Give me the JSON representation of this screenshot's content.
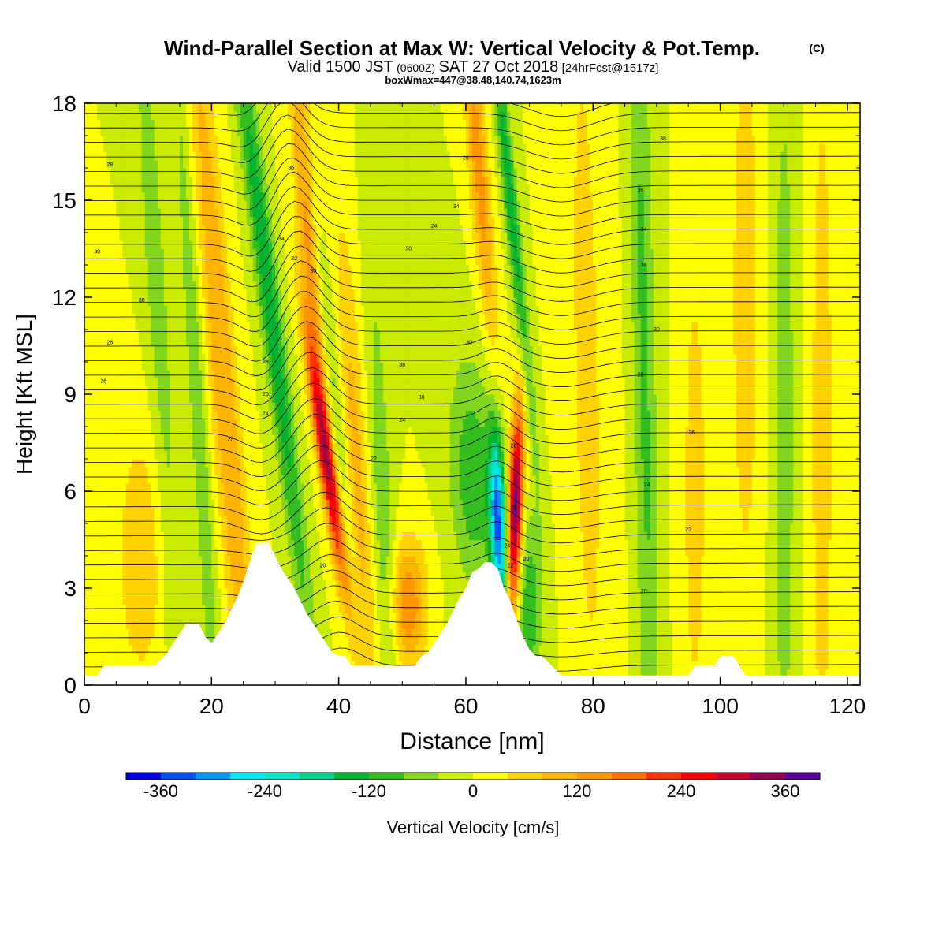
{
  "title": {
    "main": "Wind-Parallel Section at Max W: Vertical Velocity & Pot.Temp.",
    "copyright": "(C)",
    "valid_prefix": "Valid 1500 JST",
    "valid_utc": "(0600Z)",
    "valid_date": "SAT 27 Oct 2018",
    "forecast": "[24hrFcst@1517z]",
    "boxinfo": "boxWmax=447@38.48,140.74,1623m"
  },
  "chart_data": {
    "type": "heatmap",
    "xlabel": "Distance [nm]",
    "ylabel": "Height [Kft MSL]",
    "xlim": [
      0,
      122
    ],
    "ylim": [
      0,
      18
    ],
    "xticks": [
      "0",
      "20",
      "40",
      "60",
      "80",
      "100",
      "120"
    ],
    "yticks": [
      "0",
      "3",
      "6",
      "9",
      "12",
      "15",
      "18"
    ],
    "colorbar": {
      "label": "Vertical Velocity [cm/s]",
      "tick_labels": [
        "-360",
        "-240",
        "-120",
        "0",
        "120",
        "240",
        "360"
      ],
      "tick_values": [
        -360,
        -240,
        -120,
        0,
        120,
        240,
        360
      ],
      "range": [
        -400,
        400
      ],
      "interval": 40,
      "colors": [
        "#0000e6",
        "#0050f0",
        "#0096f5",
        "#00e6f5",
        "#00e6c8",
        "#00d28c",
        "#00b432",
        "#32be1e",
        "#82d61e",
        "#c8eb00",
        "#ffff00",
        "#ffd200",
        "#ffb400",
        "#ff9600",
        "#ff6e00",
        "#ff3200",
        "#ff0000",
        "#c80032",
        "#960050",
        "#5a0096"
      ]
    },
    "terrain": [
      [
        0,
        0.3
      ],
      [
        2,
        0.3
      ],
      [
        3,
        0.6
      ],
      [
        11,
        0.6
      ],
      [
        12,
        0.8
      ],
      [
        13,
        1.0
      ],
      [
        14,
        1.3
      ],
      [
        15,
        1.6
      ],
      [
        16,
        1.9
      ],
      [
        18,
        1.9
      ],
      [
        19,
        1.5
      ],
      [
        20,
        1.3
      ],
      [
        21,
        1.6
      ],
      [
        22,
        1.9
      ],
      [
        23,
        2.3
      ],
      [
        24,
        2.7
      ],
      [
        25,
        3.2
      ],
      [
        26,
        3.8
      ],
      [
        27,
        4.4
      ],
      [
        29,
        4.4
      ],
      [
        30,
        4.0
      ],
      [
        31,
        3.6
      ],
      [
        32,
        3.3
      ],
      [
        33,
        3.0
      ],
      [
        34,
        2.6
      ],
      [
        35,
        2.2
      ],
      [
        36,
        1.9
      ],
      [
        37,
        1.6
      ],
      [
        38,
        1.3
      ],
      [
        39,
        1.0
      ],
      [
        40,
        0.9
      ],
      [
        41,
        0.9
      ],
      [
        42,
        0.6
      ],
      [
        48,
        0.6
      ],
      [
        50,
        0.6
      ],
      [
        52,
        0.6
      ],
      [
        53,
        0.9
      ],
      [
        54,
        1.0
      ],
      [
        55,
        1.3
      ],
      [
        56,
        1.6
      ],
      [
        57,
        1.9
      ],
      [
        58,
        2.3
      ],
      [
        59,
        2.7
      ],
      [
        60,
        3.0
      ],
      [
        61,
        3.5
      ],
      [
        62,
        3.6
      ],
      [
        63,
        3.8
      ],
      [
        64,
        3.8
      ],
      [
        65,
        3.6
      ],
      [
        66,
        3.0
      ],
      [
        67,
        2.6
      ],
      [
        68,
        2.0
      ],
      [
        69,
        1.5
      ],
      [
        70,
        1.1
      ],
      [
        71,
        0.9
      ],
      [
        72,
        0.9
      ],
      [
        73,
        0.7
      ],
      [
        74,
        0.5
      ],
      [
        75,
        0.3
      ],
      [
        95,
        0.3
      ],
      [
        96,
        0.6
      ],
      [
        99,
        0.6
      ],
      [
        100,
        0.9
      ],
      [
        102,
        0.9
      ],
      [
        103,
        0.6
      ],
      [
        104,
        0.3
      ],
      [
        122,
        0.3
      ]
    ],
    "theta_labels": [
      {
        "x": 4,
        "y": 16.1,
        "text": "28"
      },
      {
        "x": 2,
        "y": 13.4,
        "text": "38"
      },
      {
        "x": 9,
        "y": 11.9,
        "text": "30"
      },
      {
        "x": 4,
        "y": 10.6,
        "text": "28"
      },
      {
        "x": 3,
        "y": 9.4,
        "text": "26"
      },
      {
        "x": 23,
        "y": 7.6,
        "text": "28"
      },
      {
        "x": 32.5,
        "y": 16.0,
        "text": "36"
      },
      {
        "x": 31,
        "y": 13.8,
        "text": "34"
      },
      {
        "x": 33,
        "y": 13.2,
        "text": "32"
      },
      {
        "x": 36,
        "y": 12.8,
        "text": "30"
      },
      {
        "x": 28.5,
        "y": 10.0,
        "text": "28"
      },
      {
        "x": 28.5,
        "y": 9.0,
        "text": "26"
      },
      {
        "x": 28.5,
        "y": 8.4,
        "text": "24"
      },
      {
        "x": 37.5,
        "y": 3.7,
        "text": "20"
      },
      {
        "x": 45.5,
        "y": 7.0,
        "text": "22"
      },
      {
        "x": 50,
        "y": 9.9,
        "text": "36"
      },
      {
        "x": 53,
        "y": 8.9,
        "text": "38"
      },
      {
        "x": 50,
        "y": 8.2,
        "text": "24"
      },
      {
        "x": 60.5,
        "y": 10.6,
        "text": "30"
      },
      {
        "x": 60,
        "y": 16.3,
        "text": "28"
      },
      {
        "x": 58.5,
        "y": 14.8,
        "text": "34"
      },
      {
        "x": 55,
        "y": 14.2,
        "text": "24"
      },
      {
        "x": 51,
        "y": 13.5,
        "text": "30"
      },
      {
        "x": 67.5,
        "y": 7.4,
        "text": "28"
      },
      {
        "x": 67.5,
        "y": 5.5,
        "text": "26"
      },
      {
        "x": 66.5,
        "y": 4.3,
        "text": "24"
      },
      {
        "x": 67,
        "y": 3.7,
        "text": "22"
      },
      {
        "x": 69.5,
        "y": 3.9,
        "text": "20"
      },
      {
        "x": 91,
        "y": 16.9,
        "text": "38"
      },
      {
        "x": 87.5,
        "y": 15.3,
        "text": "36"
      },
      {
        "x": 88,
        "y": 14.1,
        "text": "34"
      },
      {
        "x": 88,
        "y": 13.0,
        "text": "38"
      },
      {
        "x": 90,
        "y": 11.0,
        "text": "30"
      },
      {
        "x": 87.5,
        "y": 9.6,
        "text": "28"
      },
      {
        "x": 95.5,
        "y": 7.8,
        "text": "26"
      },
      {
        "x": 88.5,
        "y": 6.2,
        "text": "24"
      },
      {
        "x": 95,
        "y": 4.8,
        "text": "22"
      },
      {
        "x": 88,
        "y": 2.9,
        "text": "20"
      }
    ]
  }
}
